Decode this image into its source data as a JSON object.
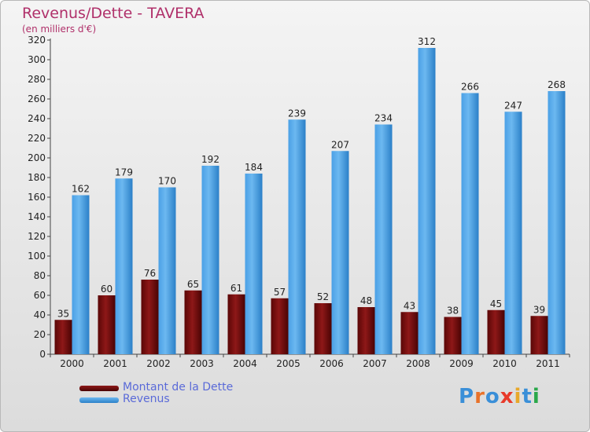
{
  "chart_data": {
    "type": "bar",
    "title": "Revenus/Dette - TAVERA",
    "subtitle": "(en milliers d'€)",
    "categories": [
      "2000",
      "2001",
      "2002",
      "2003",
      "2004",
      "2005",
      "2006",
      "2007",
      "2008",
      "2009",
      "2010",
      "2011"
    ],
    "series": [
      {
        "name": "Montant de la Dette",
        "color": "#7a0c0c",
        "values": [
          35,
          60,
          76,
          65,
          61,
          57,
          52,
          48,
          43,
          38,
          45,
          39
        ]
      },
      {
        "name": "Revenus",
        "color": "#3a96dc",
        "values": [
          162,
          179,
          170,
          192,
          184,
          239,
          207,
          234,
          312,
          266,
          247,
          268
        ]
      }
    ],
    "ylim": [
      0,
      320
    ],
    "yticks": [
      0,
      20,
      40,
      60,
      80,
      100,
      120,
      140,
      160,
      180,
      200,
      220,
      240,
      260,
      280,
      300,
      320
    ],
    "grid": false,
    "legend_position": "bottom-left"
  },
  "logo": {
    "text": "Proxiti",
    "colors": [
      "#3a8fd8",
      "#e8722a",
      "#3a8fd8",
      "#e83a2a",
      "#e8a82a",
      "#3a8fd8",
      "#2aa84a"
    ]
  }
}
